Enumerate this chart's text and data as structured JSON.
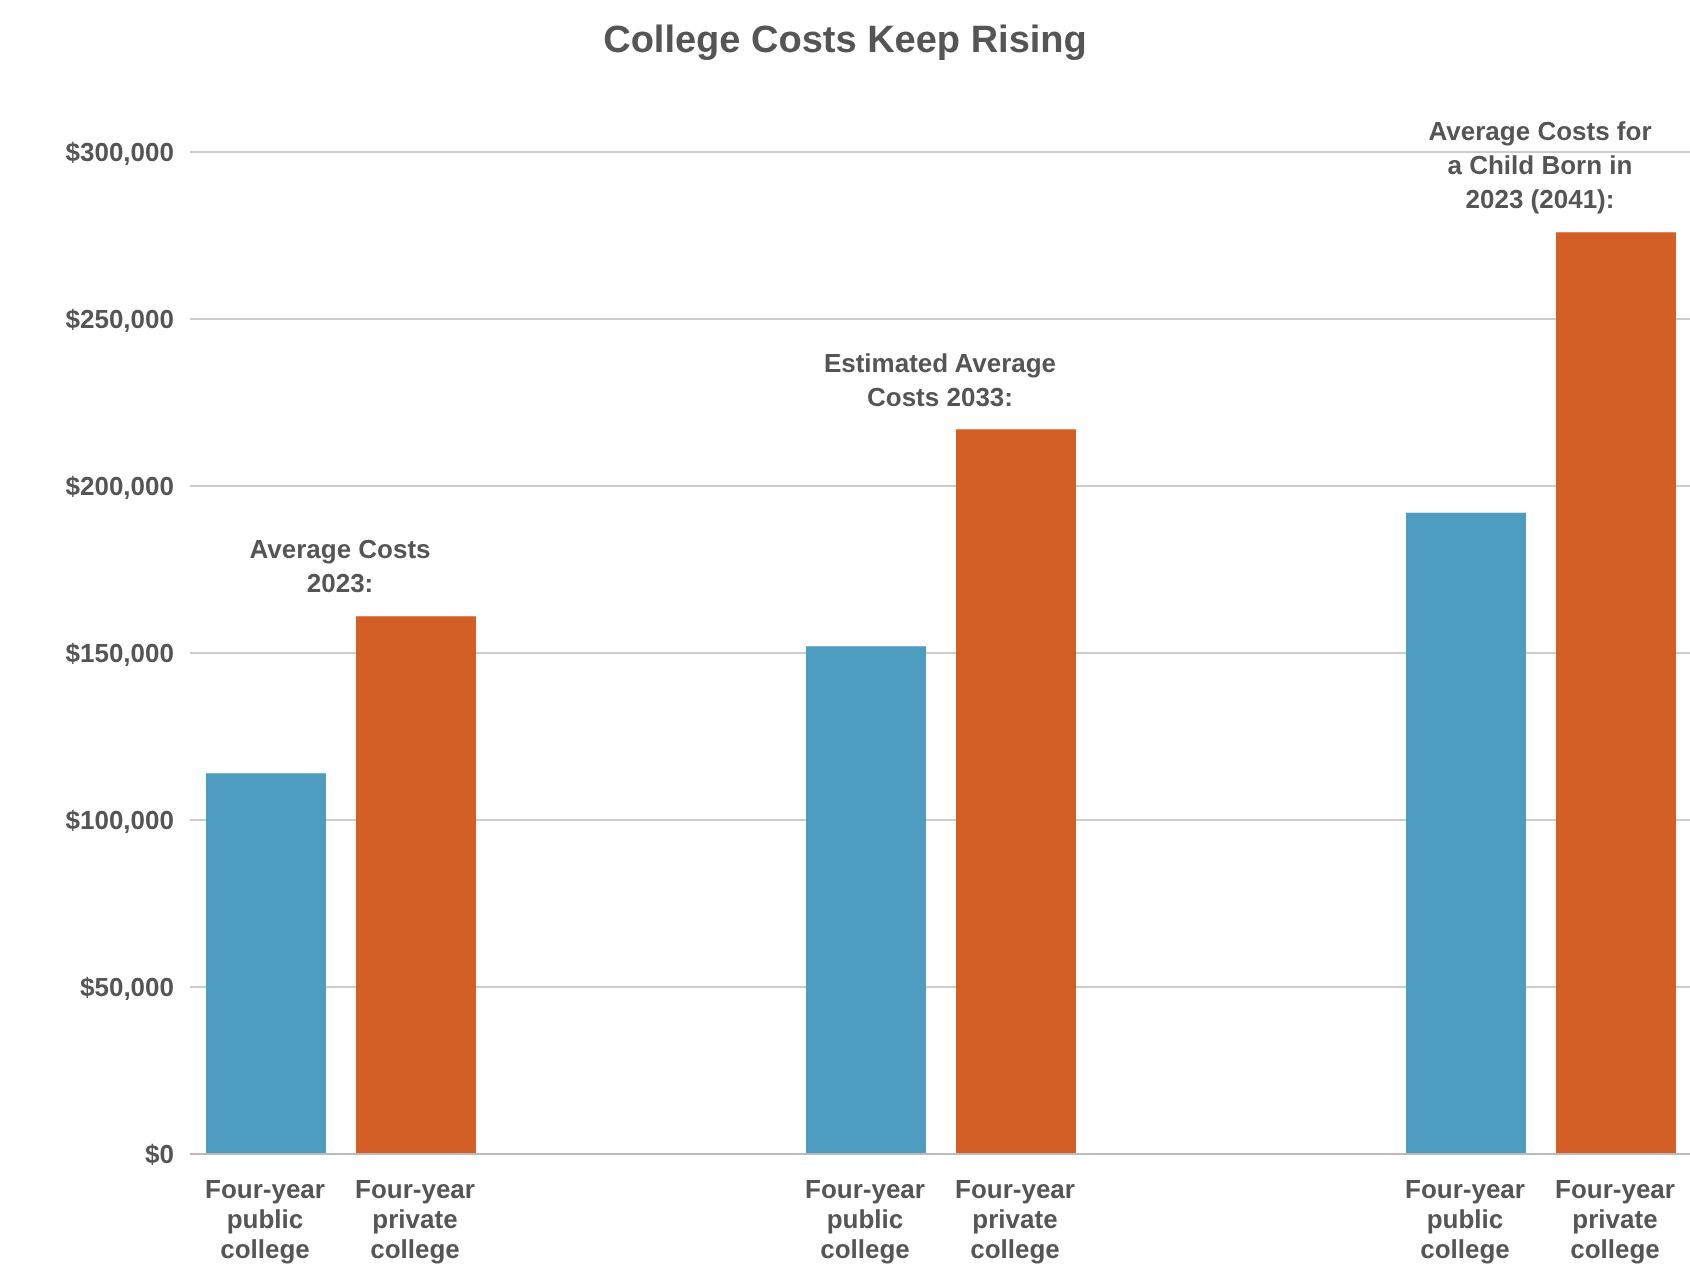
{
  "chart_data": {
    "type": "bar",
    "title": "College Costs Keep Rising",
    "categories": [
      "Four-year public college",
      "Four-year private college",
      null,
      null,
      "Four-year public college",
      "Four-year private college",
      null,
      null,
      "Four-year public college",
      "Four-year private college"
    ],
    "values": [
      114000,
      161000,
      null,
      null,
      152000,
      217000,
      null,
      null,
      192000,
      276000
    ],
    "colors": [
      "#4e9dc1",
      "#d35f27",
      null,
      null,
      "#4e9dc1",
      "#d35f27",
      null,
      null,
      "#4e9dc1",
      "#d35f27"
    ],
    "ylim": [
      0,
      300000
    ],
    "yticks": [
      {
        "value": 0,
        "label": "$0"
      },
      {
        "value": 50000,
        "label": "$50,000"
      },
      {
        "value": 100000,
        "label": "$100,000"
      },
      {
        "value": 150000,
        "label": "$150,000"
      },
      {
        "value": 200000,
        "label": "$200,000"
      },
      {
        "value": 250000,
        "label": "$250,000"
      },
      {
        "value": 300000,
        "label": "$300,000"
      }
    ],
    "grid": "y",
    "annotations": [
      "Average Costs 2023:",
      "Estimated Average Costs 2033:",
      "Average Costs for a Child Born in 2023 (2041):"
    ]
  }
}
